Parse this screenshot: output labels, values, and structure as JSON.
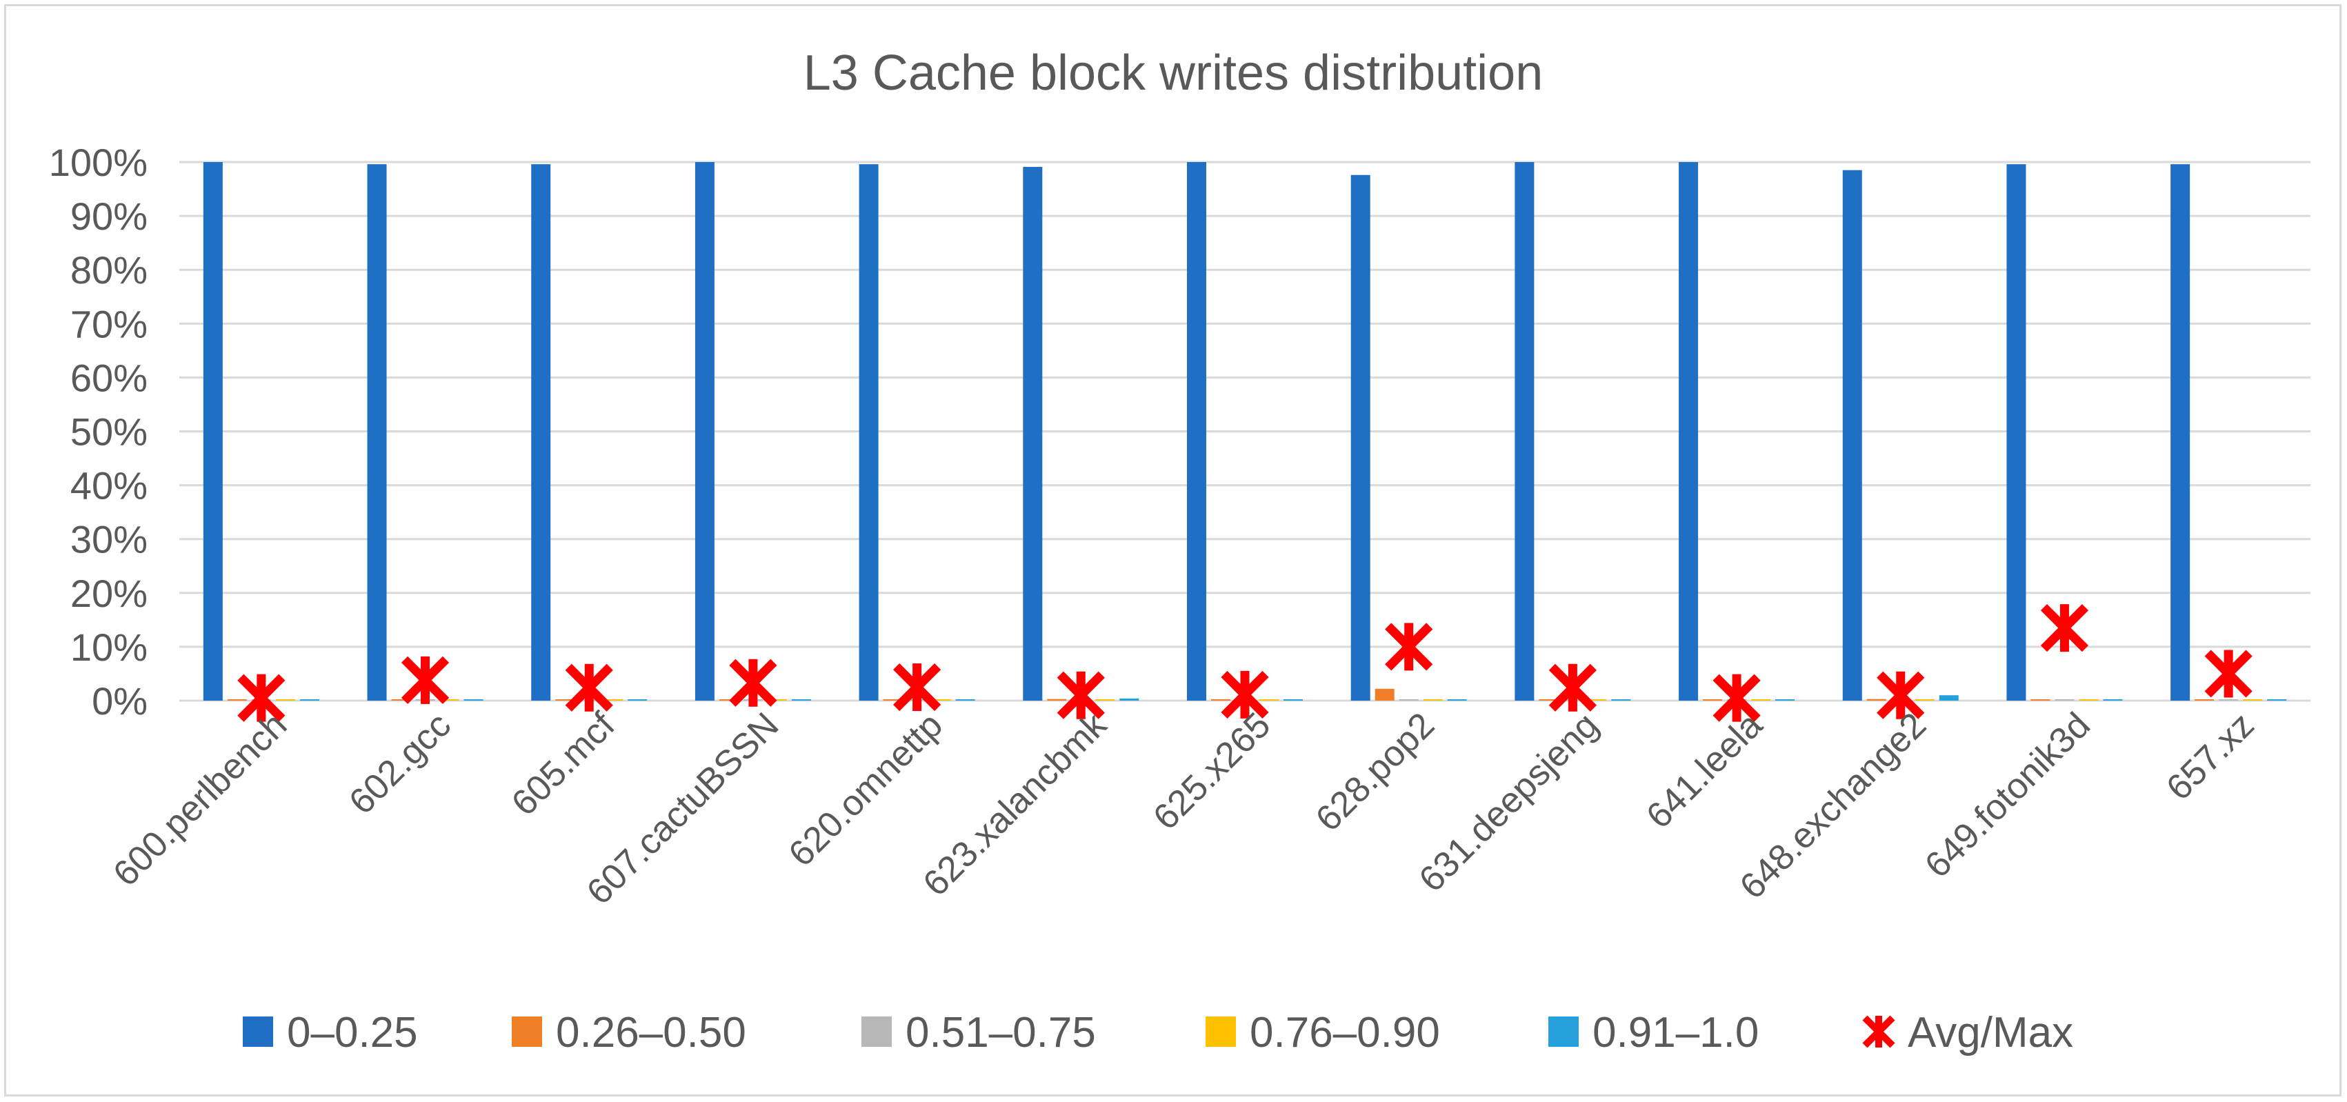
{
  "chart_data": {
    "type": "bar",
    "title": "L3 Cache block writes distribution",
    "xlabel": "",
    "ylabel": "",
    "ylim": [
      0,
      100
    ],
    "y_unit": "%",
    "yticks": [
      "0%",
      "10%",
      "20%",
      "30%",
      "40%",
      "50%",
      "60%",
      "70%",
      "80%",
      "90%",
      "100%"
    ],
    "grid": true,
    "legend_position": "bottom",
    "categories": [
      "600.perlbench",
      "602.gcc",
      "605.mcf",
      "607.cactuBSSN",
      "620.omnettp",
      "623.xalancbmk",
      "625.x265",
      "628.pop2",
      "631.deepsjeng",
      "641.leela",
      "648.exchange2",
      "649.fotonik3d",
      "657.xz"
    ],
    "series": [
      {
        "name": "0–0.25",
        "kind": "bar",
        "color": "#1f6fc5",
        "values": [
          100,
          99.6,
          99.6,
          100,
          99.6,
          99.1,
          100,
          97.6,
          100,
          100,
          98.5,
          99.6,
          99.6
        ]
      },
      {
        "name": "0.26–0.50",
        "kind": "bar",
        "color": "#f07e27",
        "values": [
          0.1,
          0.2,
          0.2,
          0.1,
          0.2,
          0.3,
          0.1,
          2.2,
          0.1,
          0.1,
          0.3,
          0.2,
          0.2
        ]
      },
      {
        "name": "0.51–0.75",
        "kind": "bar",
        "color": "#b7b7b7",
        "values": [
          0.05,
          0.05,
          0.05,
          0.05,
          0.05,
          0.1,
          0.05,
          0.1,
          0.05,
          0.05,
          0.1,
          0.05,
          0.05
        ]
      },
      {
        "name": "0.76–0.90",
        "kind": "bar",
        "color": "#ffc000",
        "values": [
          0.05,
          0.05,
          0.05,
          0.05,
          0.05,
          0.1,
          0.05,
          0.1,
          0.05,
          0.05,
          0.1,
          0.2,
          0.05
        ]
      },
      {
        "name": "0.91–1.0",
        "kind": "bar",
        "color": "#25a0da",
        "values": [
          0.2,
          0.2,
          0.2,
          0.2,
          0.2,
          0.4,
          0.2,
          0.2,
          0.2,
          0.2,
          1.0,
          0.2,
          0.2
        ]
      },
      {
        "name": "Avg/Max",
        "kind": "marker",
        "color": "#ff0000",
        "values": [
          0.5,
          3.8,
          2.4,
          3.3,
          2.5,
          1.0,
          1.1,
          10.0,
          2.4,
          0.5,
          1.0,
          13.5,
          5.0
        ]
      }
    ]
  }
}
